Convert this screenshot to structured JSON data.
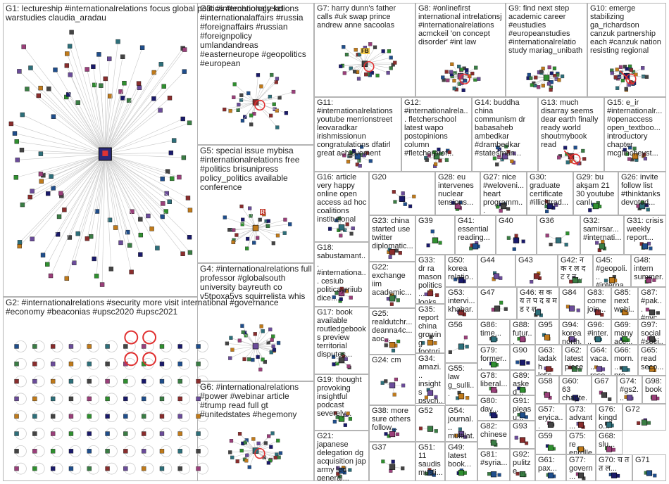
{
  "groups": [
    {
      "id": "G1",
      "text": "G1: lectureship #internationalrelations focus global politics #technology kcl warstudies claudia_aradau"
    },
    {
      "id": "G2",
      "text": "G2: #internationalrelations #security more visit international #governance #economy #beaconias #upsc2020 #upsc2021"
    },
    {
      "id": "G3",
      "text": "G3: #internationalrelations #internationalaffairs #russia #foreignaffairs #russian #foreignpolicy umlandandreas #easterneurope #geopolitics #european"
    },
    {
      "id": "G4",
      "text": "G4: #internationalrelations full professor #globalsouth university bayreuth co v5tpoxa5vs squirrelista whis"
    },
    {
      "id": "G5",
      "text": "G5: special issue mybisa #internationalrelations free #politics brisunipress policy_politics available conference"
    },
    {
      "id": "G6",
      "text": "G6: #internationalrelations #power #webinar article #trump read full gt #unitedstates #hegemony"
    },
    {
      "id": "G7",
      "text": "G7: harry dunn's father calls #uk swap prince andrew anne sacoolas"
    },
    {
      "id": "G8",
      "text": "G8: #onlinefirst international intrelationsj #internationalrelations acmckeil 'on concept disorder' #int law"
    },
    {
      "id": "G9",
      "text": "G9: find next step academic career #eustudies #europeanstudies #internationalrelatio study mariag_unibath"
    },
    {
      "id": "G10",
      "text": "G10: emerge stabilizing ga_richardson canzuk partnership each #canzuk nation resisting regional"
    },
    {
      "id": "G11",
      "text": "G11: #internationalrelations youtube merrionstreet leovaradkar irishmissionun congratulations dfatirl great achievement"
    },
    {
      "id": "G12",
      "text": "G12: #internationalrela... fletcherschool latest wapo postopinions column #fletcherprof..."
    },
    {
      "id": "G13",
      "text": "G13: much disarray seems dear earth finally ready world shoutmybook read"
    },
    {
      "id": "G14",
      "text": "G14: buddha china communism dr babasaheb ambedkar #drambedkar #statesman..."
    },
    {
      "id": "G15",
      "text": "G15: e_ir #internationalr... #openaccess open_textboo... introductory chapter mcglincheyst..."
    },
    {
      "id": "G16",
      "text": "G16: article very happy online open access ad hoc coalitions institutional"
    },
    {
      "id": "G17",
      "text": "G17: book available routledgebooks preview territorial disputes..."
    },
    {
      "id": "G18",
      "text": "G18: sabustamant... #internationa... cesiub politicayrriiub dice..."
    },
    {
      "id": "G19",
      "text": "G19: thought provoking insightful podcast severely..."
    },
    {
      "id": "G20",
      "text": "G20"
    },
    {
      "id": "G21",
      "text": "G21: japanese delegation dg acquisition jap army led general..."
    },
    {
      "id": "G22",
      "text": "G22: exchange iim academic..."
    },
    {
      "id": "G23",
      "text": "G23: china started use twitter diplomatic..."
    },
    {
      "id": "G24",
      "text": "G24: cm"
    },
    {
      "id": "G25",
      "text": "G25: realdutchr... deanna4c... aoc..."
    },
    {
      "id": "G26",
      "text": "G26: invite follow list #thinktanks devoted..."
    },
    {
      "id": "G27",
      "text": "G27: nice #weloveni... heart programm..."
    },
    {
      "id": "G28",
      "text": "G28: eu intervenes nuclear tensions..."
    },
    {
      "id": "G29",
      "text": "G29: bu akşam 21 30 youtube canlı"
    },
    {
      "id": "G30",
      "text": "G30: graduate certificate #illicittrad..."
    },
    {
      "id": "G31",
      "text": "G31: crisis weekly report..."
    },
    {
      "id": "G32",
      "text": "G32: samirsar... #internati..."
    },
    {
      "id": "G33",
      "text": "G33: dr ra mason politics... looks..."
    },
    {
      "id": "G34",
      "text": "G34: amazi... insights psych... russia..."
    },
    {
      "id": "G35",
      "text": "G35: report china growing footpri..."
    },
    {
      "id": "G36",
      "text": "G36"
    },
    {
      "id": "G37",
      "text": "G37"
    },
    {
      "id": "G38",
      "text": "G38: more sure others follow..."
    },
    {
      "id": "G39",
      "text": "G39"
    },
    {
      "id": "G40",
      "text": "G40"
    },
    {
      "id": "G41",
      "text": "G41: essential reading..."
    },
    {
      "id": "G42",
      "text": "G42: न क र ल द ट र न..."
    },
    {
      "id": "G43",
      "text": "G43"
    },
    {
      "id": "G44",
      "text": "G44"
    },
    {
      "id": "G45",
      "text": "G45: #geopoli... #interna..."
    },
    {
      "id": "G46",
      "text": "G46: स क य त प द ब म ड र श"
    },
    {
      "id": "G47",
      "text": "G47"
    },
    {
      "id": "G48",
      "text": "G48: intern summer..."
    },
    {
      "id": "G49",
      "text": "G49: latest book..."
    },
    {
      "id": "G50",
      "text": "G50: korea relatio..."
    },
    {
      "id": "G51",
      "text": "G51: 11 saudis musli..."
    },
    {
      "id": "G52",
      "text": "G52"
    },
    {
      "id": "G53",
      "text": "G53: intervi... khabar..."
    },
    {
      "id": "G54",
      "text": "G54: journal... multilat..."
    },
    {
      "id": "G55",
      "text": "G55: law g_sulli..."
    },
    {
      "id": "G56",
      "text": "G56"
    },
    {
      "id": "G57",
      "text": "G57: eryica..."
    },
    {
      "id": "G58",
      "text": "G58"
    },
    {
      "id": "G59",
      "text": "G59"
    },
    {
      "id": "G60",
      "text": "G60: 63 chapte..."
    },
    {
      "id": "G61",
      "text": "G61: pax..."
    },
    {
      "id": "G62",
      "text": "G62: latest piece..."
    },
    {
      "id": "G63",
      "text": "G63: ladakh let's..."
    },
    {
      "id": "G64",
      "text": "G64: vaca... rese..."
    },
    {
      "id": "G65",
      "text": "G65: read seco..."
    },
    {
      "id": "G66",
      "text": "G66: morn... pre..."
    },
    {
      "id": "G67",
      "text": "G67"
    },
    {
      "id": "G68",
      "text": "G68: slu..."
    },
    {
      "id": "G69",
      "text": "G69: many acc..."
    },
    {
      "id": "G70",
      "text": "G70: च त त ल..."
    },
    {
      "id": "G71",
      "text": "G71"
    },
    {
      "id": "G72",
      "text": "G72"
    },
    {
      "id": "G73",
      "text": "G73: advant..."
    },
    {
      "id": "G74",
      "text": "G74: #gs2..."
    },
    {
      "id": "G75",
      "text": "G75: re enrolle..."
    },
    {
      "id": "G76",
      "text": "G76: kingdo..."
    },
    {
      "id": "G77",
      "text": "G77: govern..."
    },
    {
      "id": "G78",
      "text": "G78: liberal..."
    },
    {
      "id": "G79",
      "text": "G79: former..."
    },
    {
      "id": "G80",
      "text": "G80: day..."
    },
    {
      "id": "G81",
      "text": "G81: #syria..."
    },
    {
      "id": "G82",
      "text": "G82: chinese"
    },
    {
      "id": "G83",
      "text": "G83: come join..."
    },
    {
      "id": "G84",
      "text": "G84"
    },
    {
      "id": "G85",
      "text": "G85: next webi..."
    },
    {
      "id": "G86",
      "text": "G86: time..."
    },
    {
      "id": "G87",
      "text": "G87: #pak... #nyc..."
    },
    {
      "id": "G88",
      "text": "G88: futur... #dipl..."
    },
    {
      "id": "G89",
      "text": "G89: asked..."
    },
    {
      "id": "G90",
      "text": "G90"
    },
    {
      "id": "G91",
      "text": "G91: pleasu..."
    },
    {
      "id": "G92",
      "text": "G92: pulitze..."
    },
    {
      "id": "G93",
      "text": "G93"
    },
    {
      "id": "G94",
      "text": "G94: korea north..."
    },
    {
      "id": "G95",
      "text": "G95"
    },
    {
      "id": "G96",
      "text": "G96: #inter... vols..."
    },
    {
      "id": "G97",
      "text": "G97: social #soci..."
    },
    {
      "id": "G98",
      "text": "G98: book"
    }
  ],
  "hub_labels": {
    "G7": "FB",
    "G5_logo": "R"
  }
}
